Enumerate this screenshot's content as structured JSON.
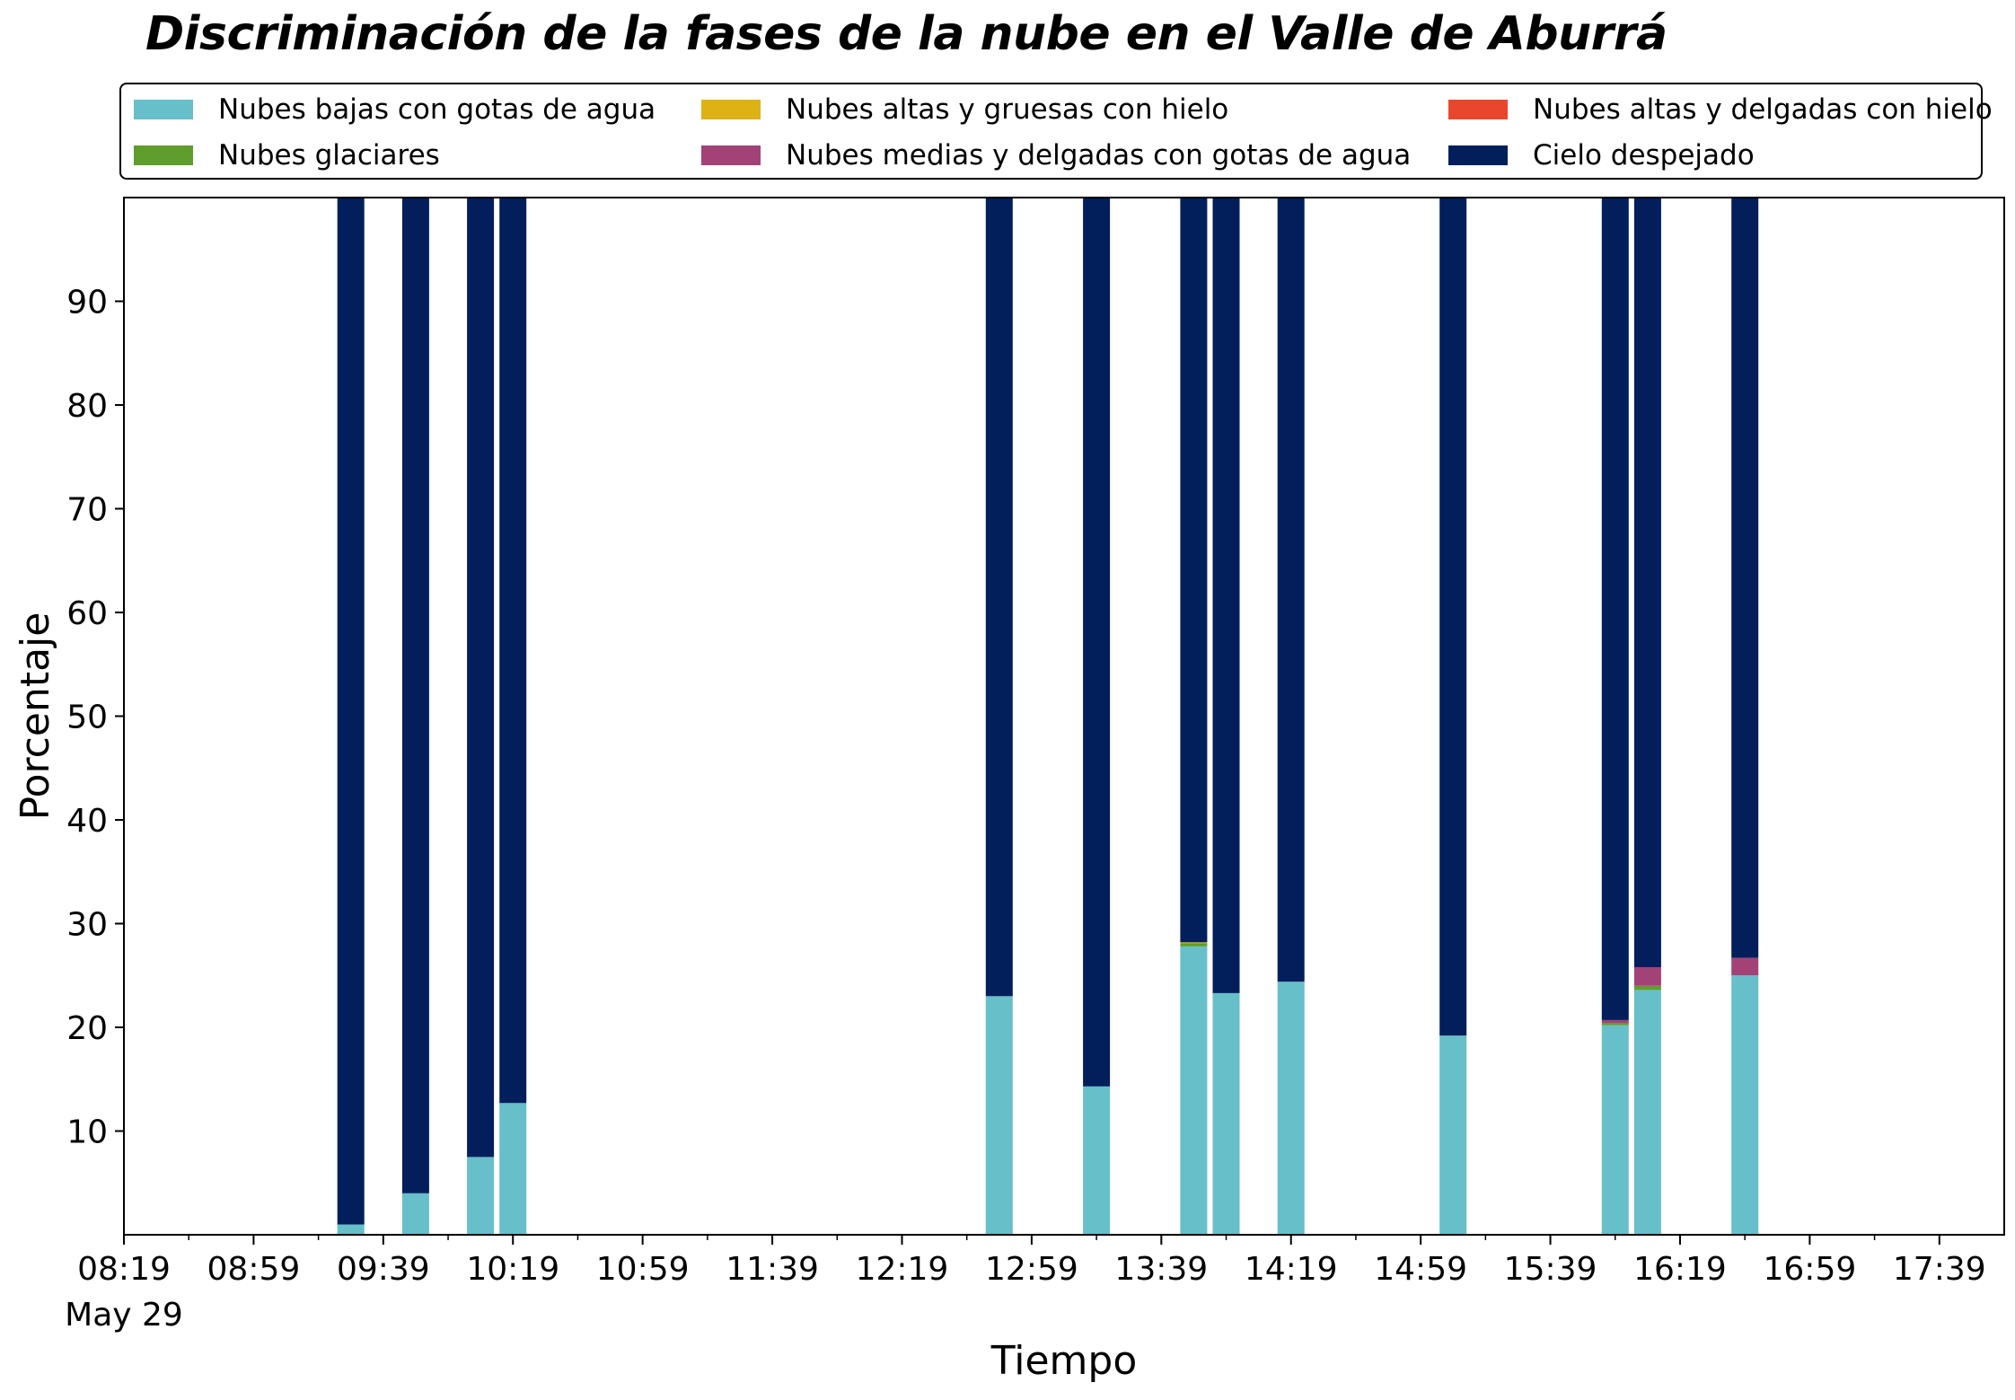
{
  "title": "Discriminación de la fases de la nube en el Valle de Aburrá",
  "legend": {
    "items": [
      {
        "label": "Nubes bajas con gotas de agua",
        "color": "#67bfc9"
      },
      {
        "label": "Nubes glaciares",
        "color": "#5f9e2c"
      },
      {
        "label": "Nubes altas y gruesas con hielo",
        "color": "#ddb215"
      },
      {
        "label": "Nubes medias y delgadas con gotas de agua",
        "color": "#a34277"
      },
      {
        "label": "Nubes altas y delgadas con hielo",
        "color": "#e8472d"
      },
      {
        "label": "Cielo despejado",
        "color": "#021f5c"
      }
    ]
  },
  "chart_data": {
    "type": "bar",
    "stacked": true,
    "title": "Discriminación de la fases de la nube en el Valle de Aburrá",
    "xlabel": "Tiempo",
    "ylabel": "Porcentaje",
    "ylim": [
      0,
      100
    ],
    "yticks": [
      10,
      20,
      30,
      40,
      50,
      60,
      70,
      80,
      90
    ],
    "xlim": [
      "08:19",
      "17:59"
    ],
    "xtick_labels": [
      "08:19",
      "08:59",
      "09:39",
      "10:19",
      "10:59",
      "11:39",
      "12:19",
      "12:59",
      "13:39",
      "14:19",
      "14:59",
      "15:39",
      "16:19",
      "16:59",
      "17:39"
    ],
    "x_date_label": "May 29",
    "categories": [
      "09:29",
      "09:49",
      "10:09",
      "10:19",
      "12:49",
      "13:19",
      "13:49",
      "13:59",
      "14:19",
      "15:09",
      "15:59",
      "16:09",
      "16:39"
    ],
    "series": [
      {
        "name": "Nubes bajas con gotas de agua",
        "color": "#67bfc9",
        "values": [
          1.0,
          4.0,
          7.5,
          12.7,
          23.0,
          14.3,
          27.8,
          23.3,
          24.4,
          19.2,
          20.2,
          23.6,
          25.0
        ]
      },
      {
        "name": "Nubes glaciares",
        "color": "#5f9e2c",
        "values": [
          0,
          0,
          0,
          0,
          0,
          0,
          0.3,
          0,
          0,
          0,
          0.2,
          0.4,
          0
        ]
      },
      {
        "name": "Nubes altas y gruesas con hielo",
        "color": "#ddb215",
        "values": [
          0,
          0,
          0,
          0,
          0,
          0,
          0.1,
          0,
          0,
          0,
          0,
          0,
          0
        ]
      },
      {
        "name": "Nubes medias y delgadas con gotas de agua",
        "color": "#a34277",
        "values": [
          0,
          0,
          0,
          0,
          0,
          0,
          0,
          0,
          0,
          0,
          0.3,
          1.8,
          1.7
        ]
      },
      {
        "name": "Nubes altas y delgadas con hielo",
        "color": "#e8472d",
        "values": [
          0,
          0,
          0,
          0,
          0,
          0,
          0,
          0,
          0,
          0,
          0,
          0,
          0
        ]
      },
      {
        "name": "Cielo despejado",
        "color": "#021f5c",
        "values": [
          99.0,
          96.0,
          92.5,
          87.3,
          77.0,
          85.7,
          71.8,
          76.7,
          75.6,
          80.8,
          79.3,
          74.2,
          73.3
        ]
      }
    ],
    "grid": false,
    "legend_position": "top"
  }
}
